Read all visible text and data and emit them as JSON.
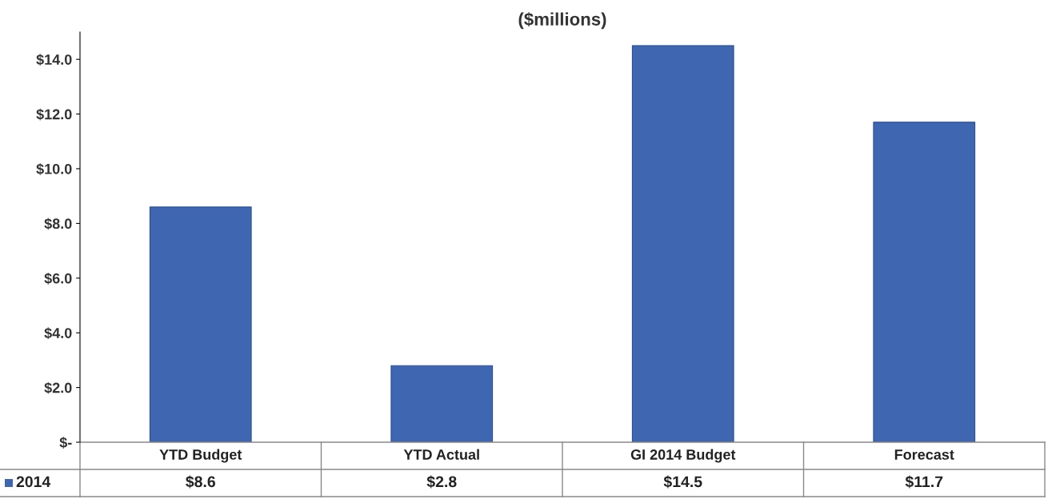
{
  "chart_data": {
    "type": "bar",
    "title": "($millions)",
    "categories": [
      "YTD Budget",
      "YTD Actual",
      "GI 2014 Budget",
      "Forecast"
    ],
    "series": [
      {
        "name": "2014",
        "color": "#3f67b1",
        "values": [
          8.6,
          2.8,
          14.5,
          11.7
        ],
        "value_labels": [
          "$8.6",
          "$2.8",
          "$14.5",
          "$11.7"
        ]
      }
    ],
    "ylim": [
      0,
      15
    ],
    "yticks": [
      {
        "value": 0,
        "label": "$-"
      },
      {
        "value": 2,
        "label": "$2.0"
      },
      {
        "value": 4,
        "label": "$4.0"
      },
      {
        "value": 6,
        "label": "$6.0"
      },
      {
        "value": 8,
        "label": "$8.0"
      },
      {
        "value": 10,
        "label": "$10.0"
      },
      {
        "value": 12,
        "label": "$12.0"
      },
      {
        "value": 14,
        "label": "$14.0"
      }
    ],
    "grid": false,
    "legend": "bottom"
  }
}
